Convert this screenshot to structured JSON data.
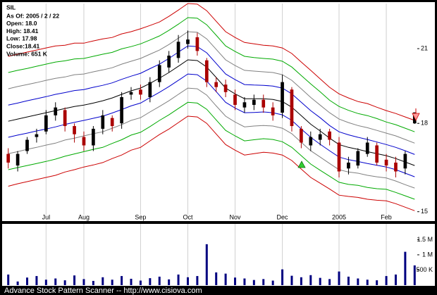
{
  "chart_data": {
    "type": "candlestick",
    "title": "SIL",
    "info": [
      "As Of: 2005 / 2 / 22",
      "Open: 18.0",
      "High: 18.41",
      "Low: 17.98",
      "Close:18.41",
      "Volume: 651 K"
    ],
    "categories": [
      null,
      null,
      null,
      null,
      "Jul",
      null,
      null,
      null,
      "Aug",
      null,
      null,
      null,
      null,
      null,
      "Sep",
      null,
      null,
      null,
      null,
      "Oct",
      null,
      null,
      null,
      null,
      "Nov",
      null,
      null,
      null,
      null,
      "Dec",
      null,
      null,
      null,
      null,
      null,
      "2005",
      null,
      null,
      null,
      null,
      "Feb",
      null,
      null,
      null
    ],
    "open": [
      16.9,
      16.5,
      17.0,
      17.5,
      17.7,
      18.3,
      18.5,
      17.9,
      17.5,
      17.2,
      17.8,
      18.2,
      18.0,
      19.1,
      19.3,
      19.0,
      19.6,
      20.2,
      20.6,
      21.2,
      21.5,
      20.5,
      19.6,
      19.5,
      19.1,
      18.6,
      18.7,
      18.9,
      18.6,
      18.4,
      19.3,
      17.8,
      17.2,
      17.4,
      17.7,
      17.3,
      16.4,
      16.5,
      16.9,
      17.2,
      16.7,
      16.6,
      16.4,
      18.0
    ],
    "high": [
      17.1,
      17.0,
      17.5,
      17.8,
      18.5,
      18.8,
      18.6,
      18.0,
      17.7,
      17.9,
      18.5,
      18.3,
      19.2,
      19.4,
      19.5,
      19.8,
      20.5,
      20.9,
      21.6,
      21.8,
      21.7,
      20.6,
      19.8,
      19.7,
      19.3,
      19.0,
      19.1,
      19.1,
      18.8,
      19.9,
      19.4,
      17.9,
      17.7,
      17.8,
      17.8,
      17.5,
      16.8,
      17.1,
      17.5,
      17.3,
      16.9,
      16.8,
      17.0,
      18.41
    ],
    "low": [
      16.4,
      16.3,
      16.9,
      17.3,
      17.6,
      18.1,
      17.7,
      17.3,
      17.0,
      17.0,
      17.6,
      17.7,
      17.8,
      18.9,
      18.9,
      18.8,
      19.4,
      20.0,
      20.4,
      21.0,
      20.7,
      19.4,
      19.2,
      19.0,
      18.5,
      18.4,
      18.5,
      18.4,
      18.1,
      18.2,
      17.7,
      17.1,
      17.0,
      17.2,
      17.2,
      16.1,
      16.2,
      16.4,
      16.8,
      16.5,
      16.3,
      16.1,
      16.2,
      17.98
    ],
    "close": [
      16.6,
      16.9,
      17.4,
      17.6,
      18.3,
      18.6,
      17.9,
      17.6,
      17.2,
      17.8,
      18.3,
      17.9,
      19.0,
      19.2,
      19.1,
      19.6,
      20.3,
      20.7,
      21.3,
      21.4,
      20.9,
      19.6,
      19.4,
      19.2,
      18.7,
      18.8,
      18.9,
      18.6,
      18.3,
      19.6,
      17.9,
      17.3,
      17.5,
      17.6,
      17.4,
      16.3,
      16.6,
      17.0,
      17.3,
      16.6,
      16.5,
      16.3,
      16.9,
      18.41
    ],
    "volume": [
      350000,
      120000,
      250000,
      300000,
      180000,
      220000,
      160000,
      320000,
      200000,
      140000,
      260000,
      180000,
      300000,
      210000,
      150000,
      230000,
      280000,
      190000,
      350000,
      260000,
      300000,
      1350000,
      420000,
      380000,
      250000,
      220000,
      170000,
      200000,
      150000,
      520000,
      310000,
      260000,
      330000,
      240000,
      200000,
      450000,
      280000,
      220000,
      180000,
      160000,
      300000,
      350000,
      1100000,
      651000
    ],
    "up_color": "#000000",
    "down_color": "#aa0000",
    "volume_color": "#000080",
    "bands": [
      {
        "color": "#cc0000",
        "values": [
          20.67,
          20.76,
          20.85,
          20.94,
          21.03,
          21.12,
          21.15,
          21.24,
          21.24,
          21.34,
          21.43,
          21.49,
          21.65,
          21.75,
          21.88,
          22.03,
          22.19,
          22.45,
          22.74,
          23.05,
          23.02,
          22.71,
          22.22,
          21.75,
          21.49,
          21.27,
          21.21,
          21.15,
          21.12,
          21.03,
          20.79,
          20.43,
          20.08,
          19.73,
          19.39,
          19.13,
          18.97,
          18.83,
          18.75,
          18.61,
          18.48,
          18.37,
          18.24,
          18.11
        ]
      },
      {
        "color": "#00aa00",
        "values": [
          19.99,
          20.08,
          20.16,
          20.25,
          20.34,
          20.43,
          20.48,
          20.56,
          20.58,
          20.67,
          20.76,
          20.84,
          20.99,
          21.09,
          21.21,
          21.38,
          21.56,
          21.81,
          22.09,
          22.39,
          22.36,
          22.06,
          21.59,
          21.12,
          20.88,
          20.67,
          20.62,
          20.58,
          20.55,
          20.46,
          20.22,
          19.87,
          19.53,
          19.21,
          18.88,
          18.64,
          18.49,
          18.37,
          18.29,
          18.18,
          18.05,
          17.95,
          17.82,
          17.69
        ]
      },
      {
        "color": "#808080",
        "values": [
          19.33,
          19.42,
          19.5,
          19.58,
          19.67,
          19.75,
          19.81,
          19.9,
          19.93,
          20.02,
          20.1,
          20.19,
          20.34,
          20.46,
          20.58,
          20.76,
          20.94,
          21.18,
          21.46,
          21.75,
          21.72,
          21.43,
          20.97,
          20.52,
          20.28,
          20.08,
          20.05,
          20.02,
          19.99,
          19.9,
          19.67,
          19.33,
          18.99,
          18.69,
          18.4,
          18.16,
          18.03,
          17.92,
          17.84,
          17.74,
          17.64,
          17.54,
          17.41,
          17.28
        ]
      },
      {
        "color": "#0000cc",
        "values": [
          18.69,
          18.77,
          18.86,
          18.94,
          19.02,
          19.11,
          19.18,
          19.26,
          19.3,
          19.39,
          19.47,
          19.57,
          19.71,
          19.84,
          19.96,
          20.15,
          20.34,
          20.58,
          20.85,
          21.12,
          21.09,
          20.82,
          20.37,
          19.93,
          19.7,
          19.5,
          19.48,
          19.47,
          19.44,
          19.36,
          19.13,
          18.8,
          18.48,
          18.21,
          17.92,
          17.69,
          17.58,
          17.49,
          17.41,
          17.32,
          17.23,
          17.13,
          17.01,
          16.88
        ]
      },
      {
        "color": "#000000",
        "values": [
          18.08,
          18.16,
          18.24,
          18.32,
          18.4,
          18.48,
          18.56,
          18.64,
          18.69,
          18.77,
          18.86,
          18.97,
          19.11,
          19.25,
          19.36,
          19.55,
          19.76,
          19.99,
          20.25,
          20.52,
          20.49,
          20.22,
          19.79,
          19.36,
          19.13,
          18.94,
          18.94,
          18.94,
          18.91,
          18.83,
          18.61,
          18.29,
          17.97,
          17.72,
          17.46,
          17.23,
          17.13,
          17.06,
          16.98,
          16.91,
          16.84,
          16.74,
          16.62,
          16.5
        ]
      },
      {
        "color": "#0000cc",
        "values": [
          17.49,
          17.57,
          17.64,
          17.72,
          17.79,
          17.87,
          17.96,
          18.04,
          18.11,
          18.19,
          18.27,
          18.39,
          18.52,
          18.66,
          18.77,
          18.98,
          19.19,
          19.42,
          19.67,
          19.93,
          19.9,
          19.64,
          19.22,
          18.8,
          18.58,
          18.4,
          18.41,
          18.43,
          18.4,
          18.32,
          18.11,
          17.79,
          17.49,
          17.24,
          17.01,
          16.79,
          16.7,
          16.64,
          16.57,
          16.51,
          16.45,
          16.36,
          16.24,
          16.12
        ]
      },
      {
        "color": "#808080",
        "values": [
          16.91,
          16.98,
          17.06,
          17.13,
          17.21,
          17.28,
          17.39,
          17.46,
          17.54,
          17.62,
          17.69,
          17.82,
          17.95,
          18.11,
          18.21,
          18.43,
          18.64,
          18.86,
          19.11,
          19.36,
          19.33,
          19.08,
          18.66,
          18.27,
          18.05,
          17.87,
          17.9,
          17.92,
          17.9,
          17.82,
          17.62,
          17.31,
          17.01,
          16.79,
          16.57,
          16.36,
          16.28,
          16.24,
          16.17,
          16.12,
          16.08,
          15.98,
          15.86,
          15.75
        ]
      },
      {
        "color": "#00aa00",
        "values": [
          16.36,
          16.43,
          16.5,
          16.57,
          16.64,
          16.72,
          16.82,
          16.9,
          16.98,
          17.06,
          17.13,
          17.27,
          17.4,
          17.57,
          17.67,
          17.88,
          18.11,
          18.32,
          18.56,
          18.8,
          18.77,
          18.53,
          18.13,
          17.74,
          17.54,
          17.36,
          17.4,
          17.44,
          17.41,
          17.33,
          17.13,
          16.84,
          16.55,
          16.34,
          16.14,
          15.94,
          15.87,
          15.84,
          15.77,
          15.73,
          15.71,
          15.61,
          15.5,
          15.39
        ]
      },
      {
        "color": "#cc0000",
        "values": [
          15.81,
          15.89,
          15.96,
          16.03,
          16.1,
          16.17,
          16.28,
          16.36,
          16.45,
          16.52,
          16.6,
          16.74,
          16.86,
          17.03,
          17.13,
          17.36,
          17.59,
          17.79,
          18.03,
          18.27,
          18.24,
          18.0,
          17.61,
          17.23,
          17.03,
          16.86,
          16.91,
          16.96,
          16.93,
          16.86,
          16.67,
          16.38,
          16.1,
          15.91,
          15.72,
          15.52,
          15.48,
          15.45,
          15.39,
          15.36,
          15.34,
          15.25,
          15.14,
          15.03
        ]
      }
    ],
    "ylim": [
      14.95,
      23.05
    ],
    "yticks": [
      15,
      18,
      21
    ],
    "log_y": true,
    "grid": true,
    "volume_ylim": [
      0,
      2020000
    ],
    "volume_yticks": [
      {
        "value": 500000,
        "label": "500 K"
      },
      {
        "value": 1000000,
        "label": "1 M"
      },
      {
        "value": 1500000,
        "label": "1.5 M"
      }
    ]
  },
  "footer": "Advance Stock Pattern Scanner -- http://www.cisiova.com"
}
